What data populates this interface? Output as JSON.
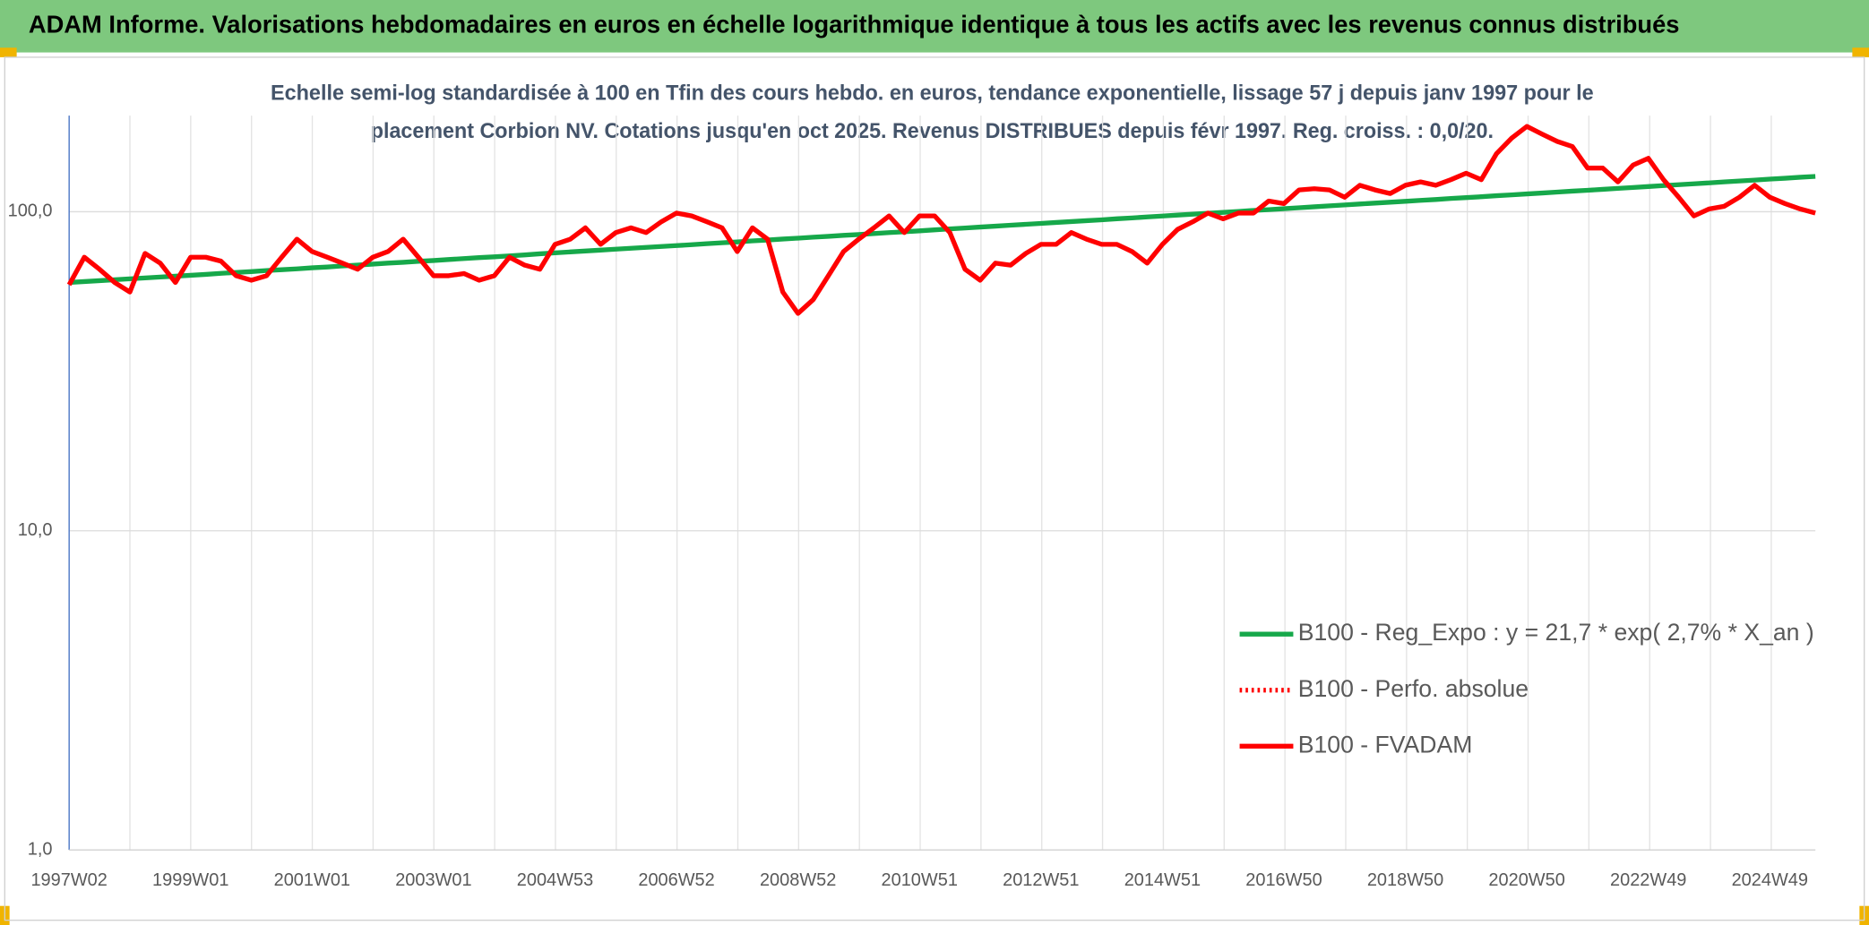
{
  "header": {
    "title": "ADAM Informe. Valorisations hebdomadaires en euros en échelle logarithmique identique à tous les actifs avec les revenus connus distribués"
  },
  "chart_data": {
    "type": "line",
    "title": [
      "Echelle semi-log standardisée à 100 en Tfin des cours hebdo. en euros, tendance exponentielle, lissage 57 j depuis janv 1997 pour le",
      "placement Corbion NV. Cotations jusqu'en oct 2025. Revenus DISTRIBUES depuis févr 1997. Reg. croiss. : 0,0/20."
    ],
    "categories": [
      "1997W02",
      null,
      null,
      null,
      null,
      null,
      null,
      null,
      "1999W01",
      null,
      null,
      null,
      null,
      null,
      null,
      null,
      "2001W01",
      null,
      null,
      null,
      null,
      null,
      null,
      null,
      "2003W01",
      null,
      null,
      null,
      null,
      null,
      null,
      null,
      "2004W53",
      null,
      null,
      null,
      null,
      null,
      null,
      null,
      "2006W52",
      null,
      null,
      null,
      null,
      null,
      null,
      null,
      "2008W52",
      null,
      null,
      null,
      null,
      null,
      null,
      null,
      "2010W51",
      null,
      null,
      null,
      null,
      null,
      null,
      null,
      "2012W51",
      null,
      null,
      null,
      null,
      null,
      null,
      null,
      "2014W51",
      null,
      null,
      null,
      null,
      null,
      null,
      null,
      "2016W50",
      null,
      null,
      null,
      null,
      null,
      null,
      null,
      "2018W50",
      null,
      null,
      null,
      null,
      null,
      null,
      null,
      "2020W50",
      null,
      null,
      null,
      null,
      null,
      null,
      null,
      "2022W49",
      null,
      null,
      null,
      null,
      null,
      null,
      null,
      "2024W49",
      null,
      null,
      null
    ],
    "series": [
      {
        "name": "B100 - Reg_Expo : y = 21,7 * exp( 2,7% *  X_an )",
        "color": "#16a84a",
        "line_style": "solid",
        "values": [
          60.0,
          60.4,
          60.8,
          61.2,
          61.6,
          62.0,
          62.4,
          62.8,
          63.2,
          63.6,
          64.1,
          64.5,
          64.9,
          65.4,
          65.8,
          66.2,
          66.7,
          67.1,
          67.6,
          68.0,
          68.5,
          69.0,
          69.4,
          69.9,
          70.3,
          70.8,
          71.3,
          71.8,
          72.2,
          72.7,
          73.2,
          73.8,
          74.3,
          74.8,
          75.3,
          75.8,
          76.3,
          76.8,
          77.3,
          77.8,
          78.3,
          78.8,
          79.4,
          79.9,
          80.4,
          81.0,
          81.5,
          82.1,
          82.6,
          83.2,
          83.7,
          84.3,
          84.8,
          85.4,
          86.0,
          86.5,
          87.1,
          87.7,
          88.3,
          88.9,
          89.5,
          90.1,
          90.7,
          91.3,
          91.9,
          92.5,
          93.1,
          93.7,
          94.3,
          95.0,
          95.6,
          96.3,
          96.9,
          97.6,
          98.2,
          98.9,
          99.5,
          100.2,
          100.9,
          101.5,
          102.2,
          102.9,
          103.6,
          104.3,
          105.0,
          105.7,
          106.4,
          107.1,
          107.8,
          108.5,
          109.2,
          110.0,
          110.7,
          111.4,
          112.2,
          112.9,
          113.7,
          114.4,
          115.2,
          116.0,
          116.7,
          117.5,
          118.3,
          119.1,
          119.9,
          120.7,
          121.5,
          122.3,
          123.1,
          124.0,
          124.8,
          125.6,
          126.5,
          127.3,
          128.2,
          129.0
        ]
      },
      {
        "name": "B100 - Perfo. absolue",
        "color": "#ff0000",
        "line_style": "dotted",
        "values": [
          null,
          null,
          null,
          null,
          null,
          null,
          null,
          null,
          null,
          null,
          null,
          null,
          null,
          null,
          null,
          null,
          null,
          null,
          null,
          null,
          null,
          null,
          null,
          null,
          null,
          null,
          null,
          null,
          null,
          null,
          null,
          null,
          null,
          null,
          null,
          null,
          null,
          null,
          null,
          null,
          null,
          null,
          null,
          null,
          null,
          null,
          null,
          null,
          null,
          null,
          null,
          null,
          null,
          null,
          null,
          null,
          null,
          null,
          null,
          null,
          null,
          null,
          null,
          null,
          null,
          null,
          null,
          null,
          null,
          null,
          null,
          null,
          null,
          null,
          null,
          null,
          null,
          null,
          null,
          null,
          null,
          null,
          null,
          null,
          null,
          null,
          null,
          null,
          null,
          null,
          null,
          null,
          null,
          null,
          null,
          null,
          null,
          null,
          null,
          null,
          null,
          null,
          null,
          null,
          null,
          null,
          null,
          null,
          null,
          null,
          null,
          null,
          null,
          null,
          null,
          null
        ]
      },
      {
        "name": "B100 - FVADAM",
        "color": "#ff0000",
        "line_style": "solid",
        "values": [
          59,
          72,
          66,
          60,
          56,
          74,
          69,
          60,
          72,
          72,
          70,
          63,
          61,
          63,
          72,
          82,
          75,
          72,
          69,
          66,
          72,
          75,
          82,
          72,
          63,
          63,
          64,
          61,
          63,
          72,
          68,
          66,
          79,
          82,
          89,
          79,
          86,
          89,
          86,
          93,
          99,
          97,
          93,
          89,
          75,
          89,
          82,
          56,
          48,
          53,
          63,
          75,
          82,
          89,
          97,
          86,
          97,
          97,
          86,
          66,
          61,
          69,
          68,
          74,
          79,
          79,
          86,
          82,
          79,
          79,
          75,
          69,
          79,
          88,
          93,
          99,
          95,
          99,
          99,
          108,
          106,
          117,
          118,
          117,
          111,
          121,
          117,
          114,
          121,
          124,
          121,
          126,
          132,
          126,
          152,
          170,
          185,
          175,
          166,
          160,
          137,
          137,
          124,
          140,
          147,
          126,
          111,
          97,
          102,
          104,
          111,
          121,
          111,
          106,
          102,
          99
        ]
      }
    ],
    "ylim": [
      1,
      200
    ],
    "log_y": true,
    "yticks": [
      {
        "value": 1,
        "label": "1,0"
      },
      {
        "value": 10,
        "label": "10,0"
      },
      {
        "value": 100,
        "label": "100,0"
      }
    ],
    "grid": true,
    "legend_position": "lower right"
  }
}
